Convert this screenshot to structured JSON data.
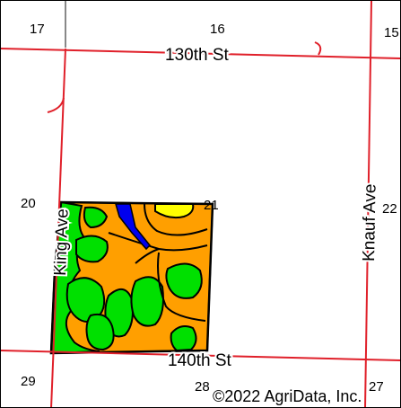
{
  "map": {
    "colors": {
      "background": "#ffffff",
      "road": "#e0202a",
      "section_line": "#888888",
      "soil_orange": "#ff9f00",
      "soil_green": "#00e000",
      "soil_yellow": "#ffff00",
      "soil_blue": "#0000ee",
      "boundary": "#000000"
    },
    "section_numbers": {
      "s17": "17",
      "s16": "16",
      "s15": "15",
      "s20": "20",
      "s21": "21",
      "s22": "22",
      "s29": "29",
      "s28": "28",
      "s27": "27"
    },
    "roads": {
      "north": "130th St",
      "south": "140th St",
      "west": "King Ave",
      "east": "Knauf Ave"
    },
    "copyright": "©2022 AgriData, Inc."
  }
}
